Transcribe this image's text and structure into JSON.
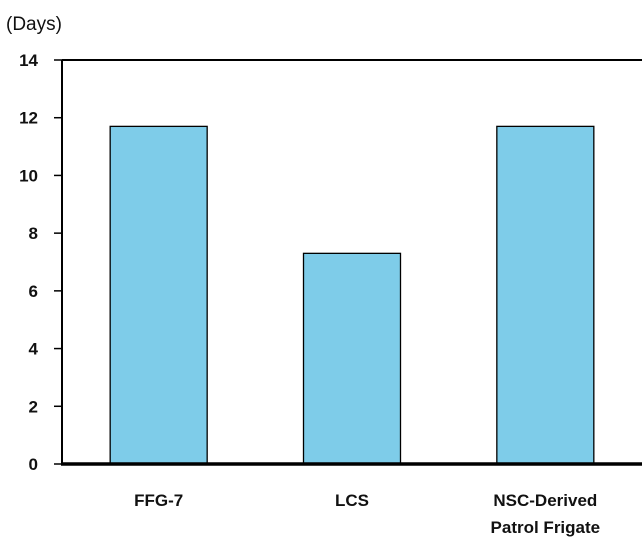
{
  "chart_data": {
    "type": "bar",
    "title": "",
    "xlabel": "",
    "ylabel": "(Days)",
    "ylim": [
      0,
      14
    ],
    "yticks": [
      "0",
      "2",
      "4",
      "6",
      "8",
      "10",
      "12",
      "14"
    ],
    "categories": [
      [
        "FFG-7"
      ],
      [
        "LCS"
      ],
      [
        "NSC-Derived",
        "Patrol Frigate"
      ]
    ],
    "values": [
      11.7,
      7.3,
      11.7
    ],
    "grid": false,
    "legend": "none",
    "colors": {
      "bar_fill": "#7ecce9",
      "bar_stroke": "#000000",
      "axis": "#000000"
    }
  }
}
